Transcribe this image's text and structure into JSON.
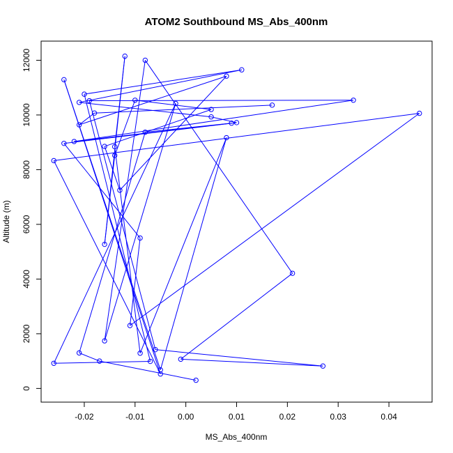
{
  "chart_data": {
    "type": "line",
    "title": "ATOM2 Southbound MS_Abs_400nm",
    "xlabel": "MS_Abs_400nm",
    "ylabel": "Altitude (m)",
    "xlim": [
      -0.0285,
      0.0485
    ],
    "ylim": [
      -500,
      12700
    ],
    "x_ticks": [
      -0.02,
      -0.01,
      0.0,
      0.01,
      0.02,
      0.03,
      0.04
    ],
    "x_tick_labels": [
      "-0.02",
      "-0.01",
      "0.00",
      "0.01",
      "0.02",
      "0.03",
      "0.04"
    ],
    "y_ticks": [
      0,
      2000,
      4000,
      6000,
      8000,
      10000,
      12000
    ],
    "y_tick_labels": [
      "0",
      "2000",
      "4000",
      "6000",
      "8000",
      "10000",
      "12000"
    ],
    "grid": false,
    "series": [
      {
        "color": "#0000ff",
        "marker": "open-circle",
        "points": [
          {
            "x": 0.002,
            "y": 300
          },
          {
            "x": -0.017,
            "y": 1000
          },
          {
            "x": -0.021,
            "y": 1300
          },
          {
            "x": -0.008,
            "y": 9370
          },
          {
            "x": 0.009,
            "y": 9700
          },
          {
            "x": -0.022,
            "y": 9030
          },
          {
            "x": 0.033,
            "y": 10540
          },
          {
            "x": -0.019,
            "y": 10520
          },
          {
            "x": -0.006,
            "y": 1420
          },
          {
            "x": 0.027,
            "y": 820
          },
          {
            "x": -0.001,
            "y": 1070
          },
          {
            "x": 0.021,
            "y": 4210
          },
          {
            "x": -0.008,
            "y": 12000
          },
          {
            "x": -0.016,
            "y": 1740
          },
          {
            "x": -0.002,
            "y": 10420
          },
          {
            "x": -0.026,
            "y": 920
          },
          {
            "x": -0.007,
            "y": 990
          },
          {
            "x": -0.02,
            "y": 10760
          },
          {
            "x": 0.011,
            "y": 11650
          },
          {
            "x": -0.021,
            "y": 10460
          },
          {
            "x": 0.005,
            "y": 9930
          },
          {
            "x": 0.01,
            "y": 9720
          },
          {
            "x": -0.024,
            "y": 8960
          },
          {
            "x": -0.009,
            "y": 5500
          },
          {
            "x": -0.011,
            "y": 2300
          },
          {
            "x": 0.046,
            "y": 10060
          },
          {
            "x": -0.026,
            "y": 8330
          },
          {
            "x": -0.005,
            "y": 530
          },
          {
            "x": -0.024,
            "y": 11290
          },
          {
            "x": -0.005,
            "y": 680
          },
          {
            "x": 0.008,
            "y": 9170
          },
          {
            "x": -0.009,
            "y": 1290
          },
          {
            "x": -0.014,
            "y": 8840
          },
          {
            "x": -0.012,
            "y": 12150
          },
          {
            "x": -0.016,
            "y": 5270
          },
          {
            "x": -0.014,
            "y": 8520
          },
          {
            "x": -0.01,
            "y": 10540
          },
          {
            "x": 0.005,
            "y": 10200
          },
          {
            "x": -0.016,
            "y": 8850
          },
          {
            "x": -0.013,
            "y": 7250
          },
          {
            "x": 0.008,
            "y": 11420
          },
          {
            "x": -0.021,
            "y": 9640
          },
          {
            "x": -0.018,
            "y": 10070
          },
          {
            "x": 0.017,
            "y": 10360
          }
        ]
      }
    ]
  }
}
